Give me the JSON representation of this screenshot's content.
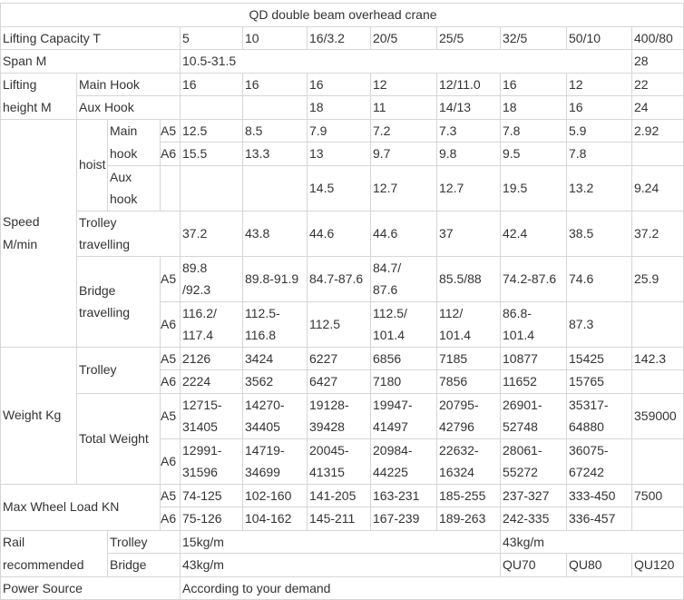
{
  "title": "QD double beam overhead crane",
  "capacity": {
    "label": "Lifting Capacity   T",
    "values": [
      "5",
      "10",
      "16/3.2",
      "20/5",
      "25/5",
      "32/5",
      "50/10",
      "400/80"
    ]
  },
  "span": {
    "label": "Span  M",
    "range": "10.5-31.5",
    "last": "28"
  },
  "lifting_height": {
    "label": "Lifting\nheight M",
    "main_hook": {
      "label": "Main Hook",
      "values": [
        "16",
        "16",
        "16",
        "12",
        "12/11.0",
        "16",
        "12",
        "22"
      ]
    },
    "aux_hook": {
      "label": "Aux Hook",
      "values": [
        "",
        "",
        "18",
        "11",
        "14/13",
        "18",
        "16",
        "24"
      ]
    }
  },
  "grades": {
    "a5": "A5",
    "a6": "A6"
  },
  "speed": {
    "label": "Speed\nM/min",
    "hoist": {
      "label": "hoist",
      "main_hook": {
        "label": "Main\nhook",
        "a5": [
          "12.5",
          "8.5",
          "7.9",
          "7.2",
          "7.3",
          "7.8",
          "5.9",
          "2.92"
        ],
        "a6": [
          "15.5",
          "13.3",
          "13",
          "9.7",
          "9.8",
          "9.5",
          "7.8",
          ""
        ]
      },
      "aux_hook": {
        "label": "Aux\nhook",
        "values": [
          "",
          "",
          "14.5",
          "12.7",
          "12.7",
          "19.5",
          "13.2",
          "9.24"
        ]
      }
    },
    "trolley_travelling": {
      "label": "Trolley\ntravelling",
      "values": [
        "37.2",
        "43.8",
        "44.6",
        "44.6",
        "37",
        "42.4",
        "38.5",
        "37.2"
      ]
    },
    "bridge_travelling": {
      "label": "Bridge\ntravelling",
      "a5": [
        "89.8\n/92.3",
        "89.8-91.9",
        "84.7-87.6",
        "84.7/\n87.6",
        "85.5/88",
        "74.2-87.6",
        "74.6",
        "25.9"
      ],
      "a6": [
        "116.2/\n117.4",
        "112.5-\n116.8",
        "112.5",
        "112.5/\n101.4",
        "112/\n101.4",
        "86.8-\n101.4",
        "87.3",
        ""
      ]
    }
  },
  "weight": {
    "label": "Weight  Kg",
    "trolley": {
      "label": "Trolley",
      "a5": [
        "2126",
        "3424",
        "6227",
        "6856",
        "7185",
        "10877",
        "15425",
        "142.3"
      ],
      "a6": [
        "2224",
        "3562",
        "6427",
        "7180",
        "7856",
        "11652",
        "15765",
        ""
      ]
    },
    "total": {
      "label": "Total Weight",
      "a5": [
        "12715-\n31405",
        "14270-\n34405",
        "19128-\n39428",
        "19947-\n41497",
        "20795-\n42796",
        "26901-\n52748",
        "35317-\n64880",
        "359000"
      ],
      "a6": [
        "12991-\n31596",
        "14719-\n34699",
        "20045-\n41315",
        "20984-\n44225",
        "22632-\n16324",
        "28061-\n55272",
        "36075-\n67242",
        ""
      ]
    }
  },
  "wheel_load": {
    "label": "Max Wheel Load KN",
    "a5": [
      "74-125",
      "102-160",
      "141-205",
      "163-231",
      "185-255",
      "237-327",
      "333-450",
      "7500"
    ],
    "a6": [
      "75-126",
      "104-162",
      "145-211",
      "167-239",
      "189-263",
      "242-335",
      "336-457",
      ""
    ]
  },
  "rail": {
    "label": "Rail\nrecommended",
    "trolley": {
      "label": "Trolley",
      "values": [
        "15kg/m",
        "43kg/m"
      ]
    },
    "bridge": {
      "label": "Bridge",
      "values": [
        "43kg/m",
        "QU70",
        "QU80",
        "QU120"
      ]
    }
  },
  "power": {
    "label": "Power Source",
    "value": "According to your demand"
  }
}
